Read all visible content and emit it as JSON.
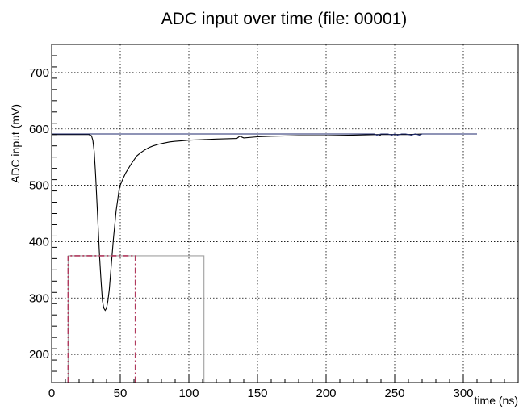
{
  "chart_data": {
    "type": "line",
    "title": "ADC input over time (file: 00001)",
    "xlabel": "time (ns)",
    "ylabel": "ADC input (mV)",
    "xlim": [
      0,
      340
    ],
    "ylim": [
      150,
      750
    ],
    "xticks": [
      0,
      50,
      100,
      150,
      200,
      250,
      300
    ],
    "yticks": [
      200,
      300,
      400,
      500,
      600,
      700
    ],
    "grid": true,
    "colors": {
      "waveform": "#000000",
      "baseline": "#1f2a6e",
      "gate": "#a0a0a0",
      "window": "#b03a5e"
    },
    "series": [
      {
        "key": "waveform",
        "style": "solid",
        "x": [
          0,
          27,
          29,
          30,
          31,
          32,
          33,
          34,
          35,
          36,
          37,
          38,
          39,
          40,
          41,
          42,
          43,
          44,
          45,
          46,
          47,
          48,
          49,
          50,
          52,
          54,
          56,
          58,
          60,
          62,
          65,
          68,
          71,
          74,
          78,
          82,
          86,
          90,
          95,
          100,
          110,
          120,
          135,
          137,
          140,
          150,
          160,
          180,
          200,
          220,
          238,
          239,
          240,
          250,
          260,
          270,
          280,
          290,
          300,
          310
        ],
        "y": [
          590,
          590,
          588,
          580,
          560,
          520,
          470,
          420,
          370,
          330,
          295,
          282,
          278,
          282,
          295,
          315,
          345,
          375,
          405,
          430,
          455,
          472,
          490,
          500,
          512,
          522,
          530,
          538,
          545,
          552,
          558,
          563,
          567,
          570,
          573,
          575,
          577,
          578,
          579,
          580,
          581,
          582,
          583,
          587,
          584,
          586,
          587,
          588,
          588,
          589,
          590,
          588,
          590,
          590,
          590,
          591,
          591,
          591,
          591,
          591
        ]
      },
      {
        "key": "baseline",
        "style": "solid",
        "x": [
          0,
          235,
          237,
          240,
          245,
          248,
          250,
          252,
          255,
          258,
          262,
          265,
          268,
          270,
          275,
          310
        ],
        "y": [
          591,
          591,
          589,
          591,
          591,
          589,
          591,
          589,
          591,
          591,
          589,
          591,
          589,
          591,
          591,
          591
        ]
      },
      {
        "key": "gate",
        "style": "solid",
        "x": [
          12,
          12,
          111,
          111
        ],
        "y": [
          150,
          375,
          375,
          150
        ]
      },
      {
        "key": "window",
        "style": "dashdot",
        "x": [
          12,
          12,
          61,
          61
        ],
        "y": [
          150,
          375,
          375,
          150
        ]
      }
    ]
  }
}
